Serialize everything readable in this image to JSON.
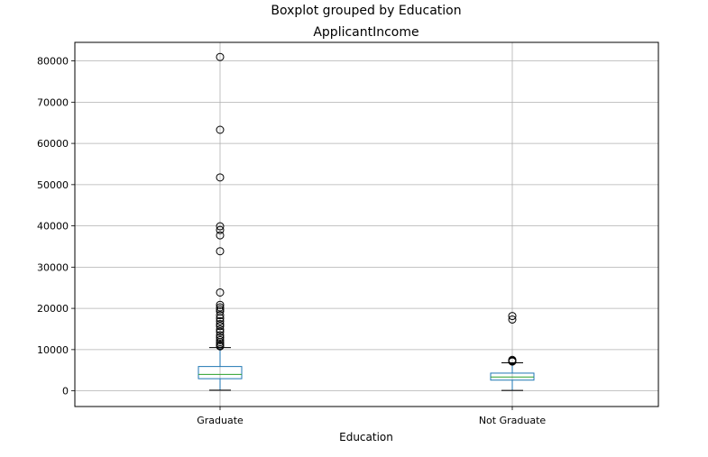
{
  "figure": {
    "suptitle": "Boxplot grouped by Education"
  },
  "chart_data": {
    "type": "boxplot",
    "title": "ApplicantIncome",
    "xlabel": "Education",
    "ylabel": "",
    "categories": [
      "Graduate",
      "Not Graduate"
    ],
    "ylim": [
      -3800,
      84500
    ],
    "yticks": [
      0,
      10000,
      20000,
      30000,
      40000,
      50000,
      60000,
      70000,
      80000
    ],
    "ytick_labels": [
      "0",
      "10000",
      "20000",
      "30000",
      "40000",
      "50000",
      "60000",
      "70000",
      "80000"
    ],
    "grid": true,
    "boxes": [
      {
        "category": "Graduate",
        "whisker_low": 150,
        "q1": 2950,
        "median": 4000,
        "q3": 5900,
        "whisker_high": 10500,
        "outliers": [
          80950,
          63300,
          51750,
          39900,
          39000,
          37700,
          33850,
          23850,
          20850,
          20250,
          19750,
          19250,
          18350,
          17600,
          16900,
          16200,
          15700,
          14900,
          14300,
          13500,
          12900,
          12300,
          11800,
          11400,
          11000,
          10800
        ]
      },
      {
        "category": "Not Graduate",
        "whisker_low": 100,
        "q1": 2600,
        "median": 3350,
        "q3": 4300,
        "whisker_high": 6800,
        "outliers": [
          18150,
          17300,
          7500,
          7300,
          7200,
          7100
        ]
      }
    ],
    "colors": {
      "box": "#1f77b4",
      "median": "#2ca02c",
      "whisker": "#1f77b4",
      "cap": "#000000",
      "outlier": "#000000",
      "grid": "#b0b0b0",
      "frame": "#000000"
    }
  }
}
